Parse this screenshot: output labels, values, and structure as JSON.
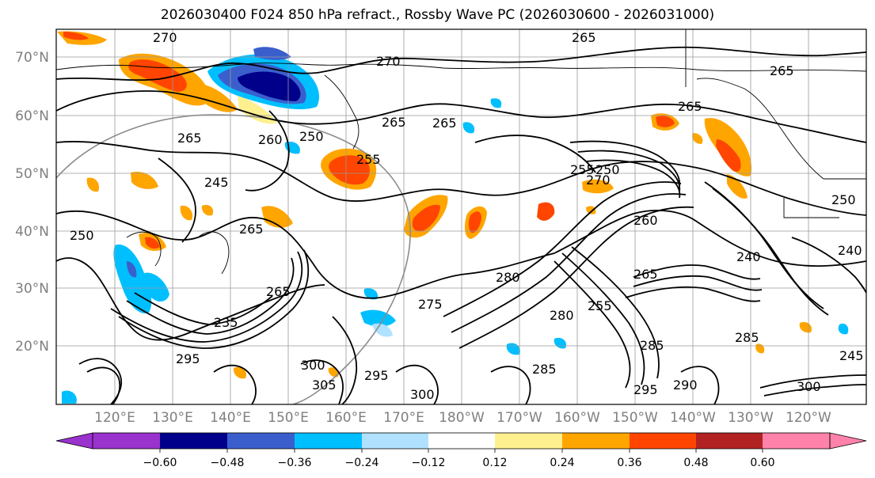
{
  "title": "2026030400 F024 850 hPa refract., Rossby Wave PC (2026030600 - 2026031000)",
  "latitude_labels": [
    "70°N",
    "60°N",
    "50°N",
    "40°N",
    "30°N",
    "20°N"
  ],
  "longitude_labels": [
    "120°E",
    "130°E",
    "140°E",
    "150°E",
    "160°E",
    "170°E",
    "180°W",
    "170°W",
    "160°W",
    "150°W",
    "140°W",
    "130°W",
    "120°W"
  ],
  "colorbar": {
    "colors": [
      "#9a32cd",
      "#00008b",
      "#3a5fcd",
      "#00bfff",
      "#b0e2ff",
      "#ffffff",
      "#fff08f",
      "#ffa500",
      "#ff4500",
      "#b22222",
      "#ff82ab"
    ],
    "tick_labels": [
      "−0.60",
      "−0.48",
      "−0.36",
      "−0.24",
      "−0.12",
      "0.12",
      "0.24",
      "0.36",
      "0.48",
      "0.60"
    ]
  },
  "contour_labels": [
    "270",
    "265",
    "270",
    "265",
    "265",
    "265",
    "265",
    "265",
    "260",
    "250",
    "255",
    "255",
    "265",
    "250",
    "270",
    "260",
    "265",
    "245",
    "240",
    "250",
    "275",
    "280",
    "255",
    "265",
    "235",
    "295",
    "300",
    "305",
    "295",
    "300",
    "285",
    "295",
    "240",
    "245",
    "285",
    "280",
    "285",
    "290",
    "300",
    "250"
  ]
}
